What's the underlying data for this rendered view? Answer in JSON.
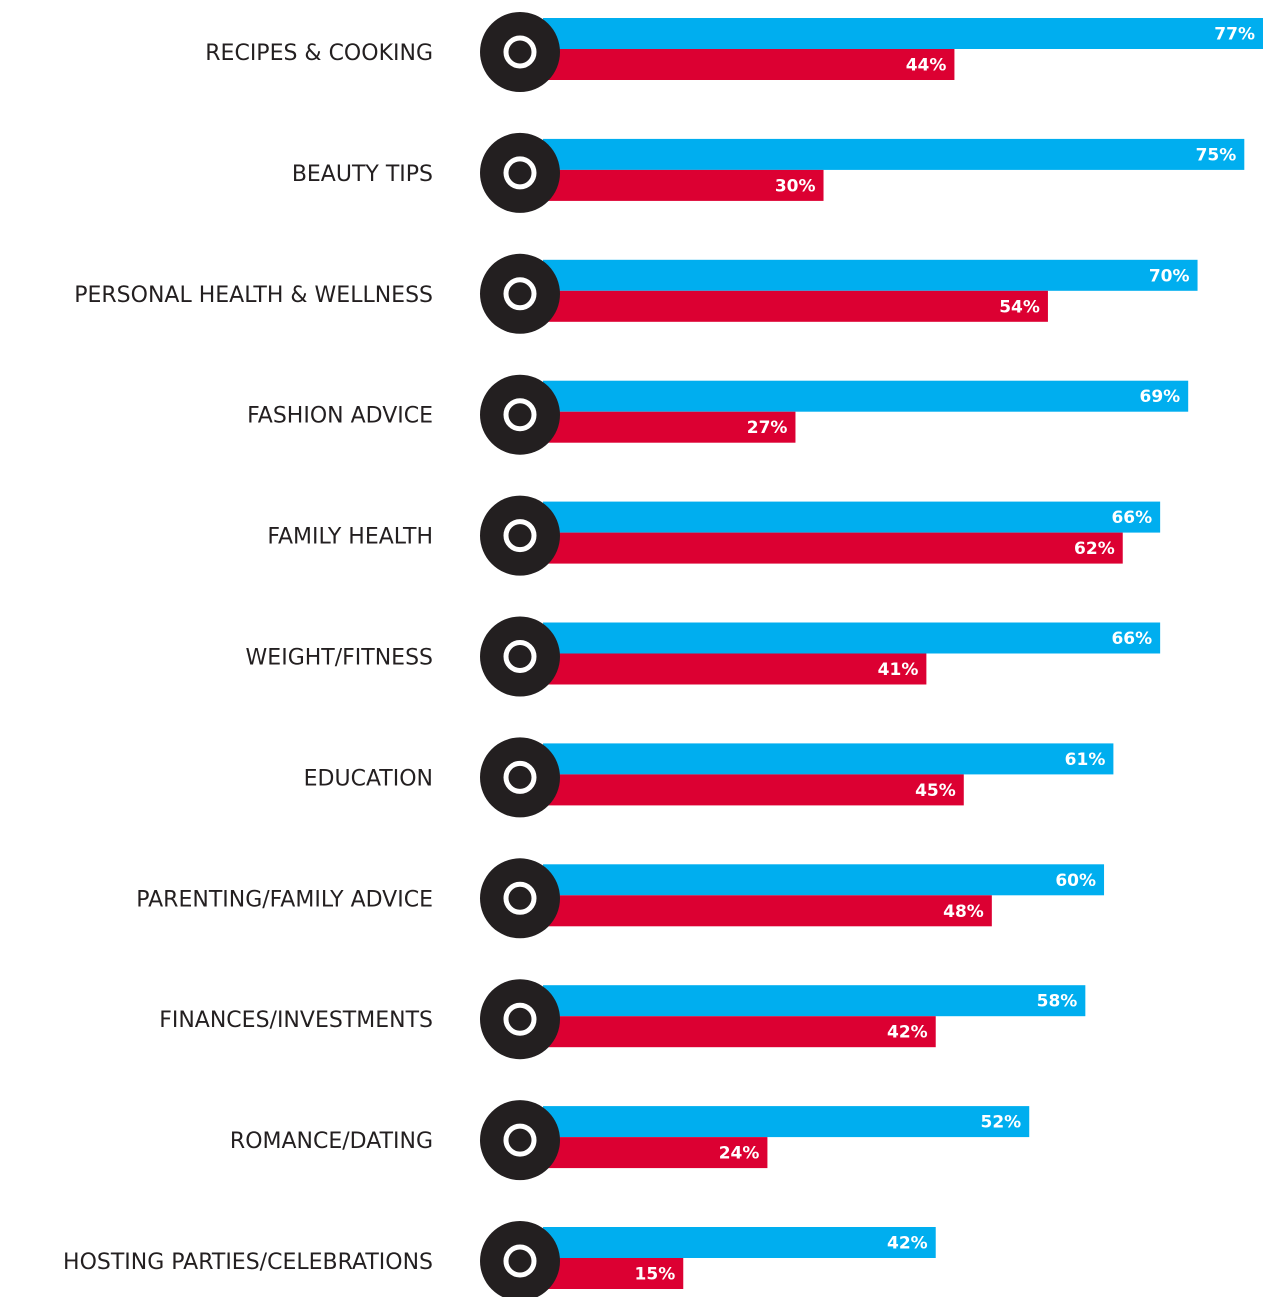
{
  "chart_data": {
    "type": "bar",
    "orientation": "horizontal",
    "categories": [
      "RECIPES & COOKING",
      "BEAUTY TIPS",
      "PERSONAL HEALTH & WELLNESS",
      "FASHION ADVICE",
      "FAMILY HEALTH",
      "WEIGHT/FITNESS",
      "EDUCATION",
      "PARENTING/FAMILY ADVICE",
      "FINANCES/INVESTMENTS",
      "ROMANCE/DATING",
      "HOSTING PARTIES/CELEBRATIONS"
    ],
    "series": [
      {
        "color": "#00aeef",
        "values": [
          77,
          75,
          70,
          69,
          66,
          66,
          61,
          60,
          58,
          52,
          42
        ],
        "value_labels": [
          "77%",
          "75%",
          "70%",
          "69%",
          "66%",
          "66%",
          "61%",
          "60%",
          "58%",
          "52%",
          "42%"
        ]
      },
      {
        "color": "#dc0032",
        "values": [
          44,
          30,
          54,
          27,
          62,
          41,
          45,
          48,
          42,
          24,
          15
        ],
        "value_labels": [
          "44%",
          "30%",
          "54%",
          "27%",
          "62%",
          "41%",
          "45%",
          "48%",
          "42%",
          "24%",
          "15%"
        ]
      }
    ]
  }
}
